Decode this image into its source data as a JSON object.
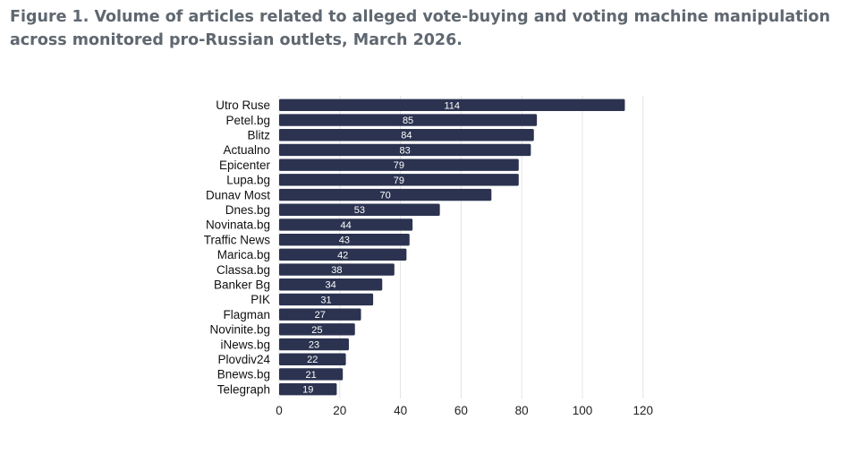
{
  "figure": {
    "caption": "Figure 1. Volume of articles related to alleged vote-buying and voting machine manipulation across monitored pro-Russian outlets, March 2026."
  },
  "chart_data": {
    "type": "bar",
    "orientation": "horizontal",
    "title": "Figure 1. Volume of articles related to alleged vote-buying and voting machine manipulation across monitored pro-Russian outlets, March 2026.",
    "xlabel": "",
    "ylabel": "",
    "categories": [
      "Utro Ruse",
      "Petel.bg",
      "Blitz",
      "Actualno",
      "Epicenter",
      "Lupa.bg",
      "Dunav Most",
      "Dnes.bg",
      "Novinata.bg",
      "Traffic News",
      "Marica.bg",
      "Classa.bg",
      "Banker Bg",
      "PIK",
      "Flagman",
      "Novinite.bg",
      "iNews.bg",
      "Plovdiv24",
      "Bnews.bg",
      "Telegraph"
    ],
    "values": [
      114,
      85,
      84,
      83,
      79,
      79,
      70,
      53,
      44,
      43,
      42,
      38,
      34,
      31,
      27,
      25,
      23,
      22,
      21,
      19
    ],
    "xlim": [
      0,
      120
    ],
    "xticks": [
      0,
      20,
      40,
      60,
      80,
      100,
      120
    ],
    "grid": true,
    "bar_color": "#2b3350",
    "grid_color": "#e4e4e4"
  }
}
